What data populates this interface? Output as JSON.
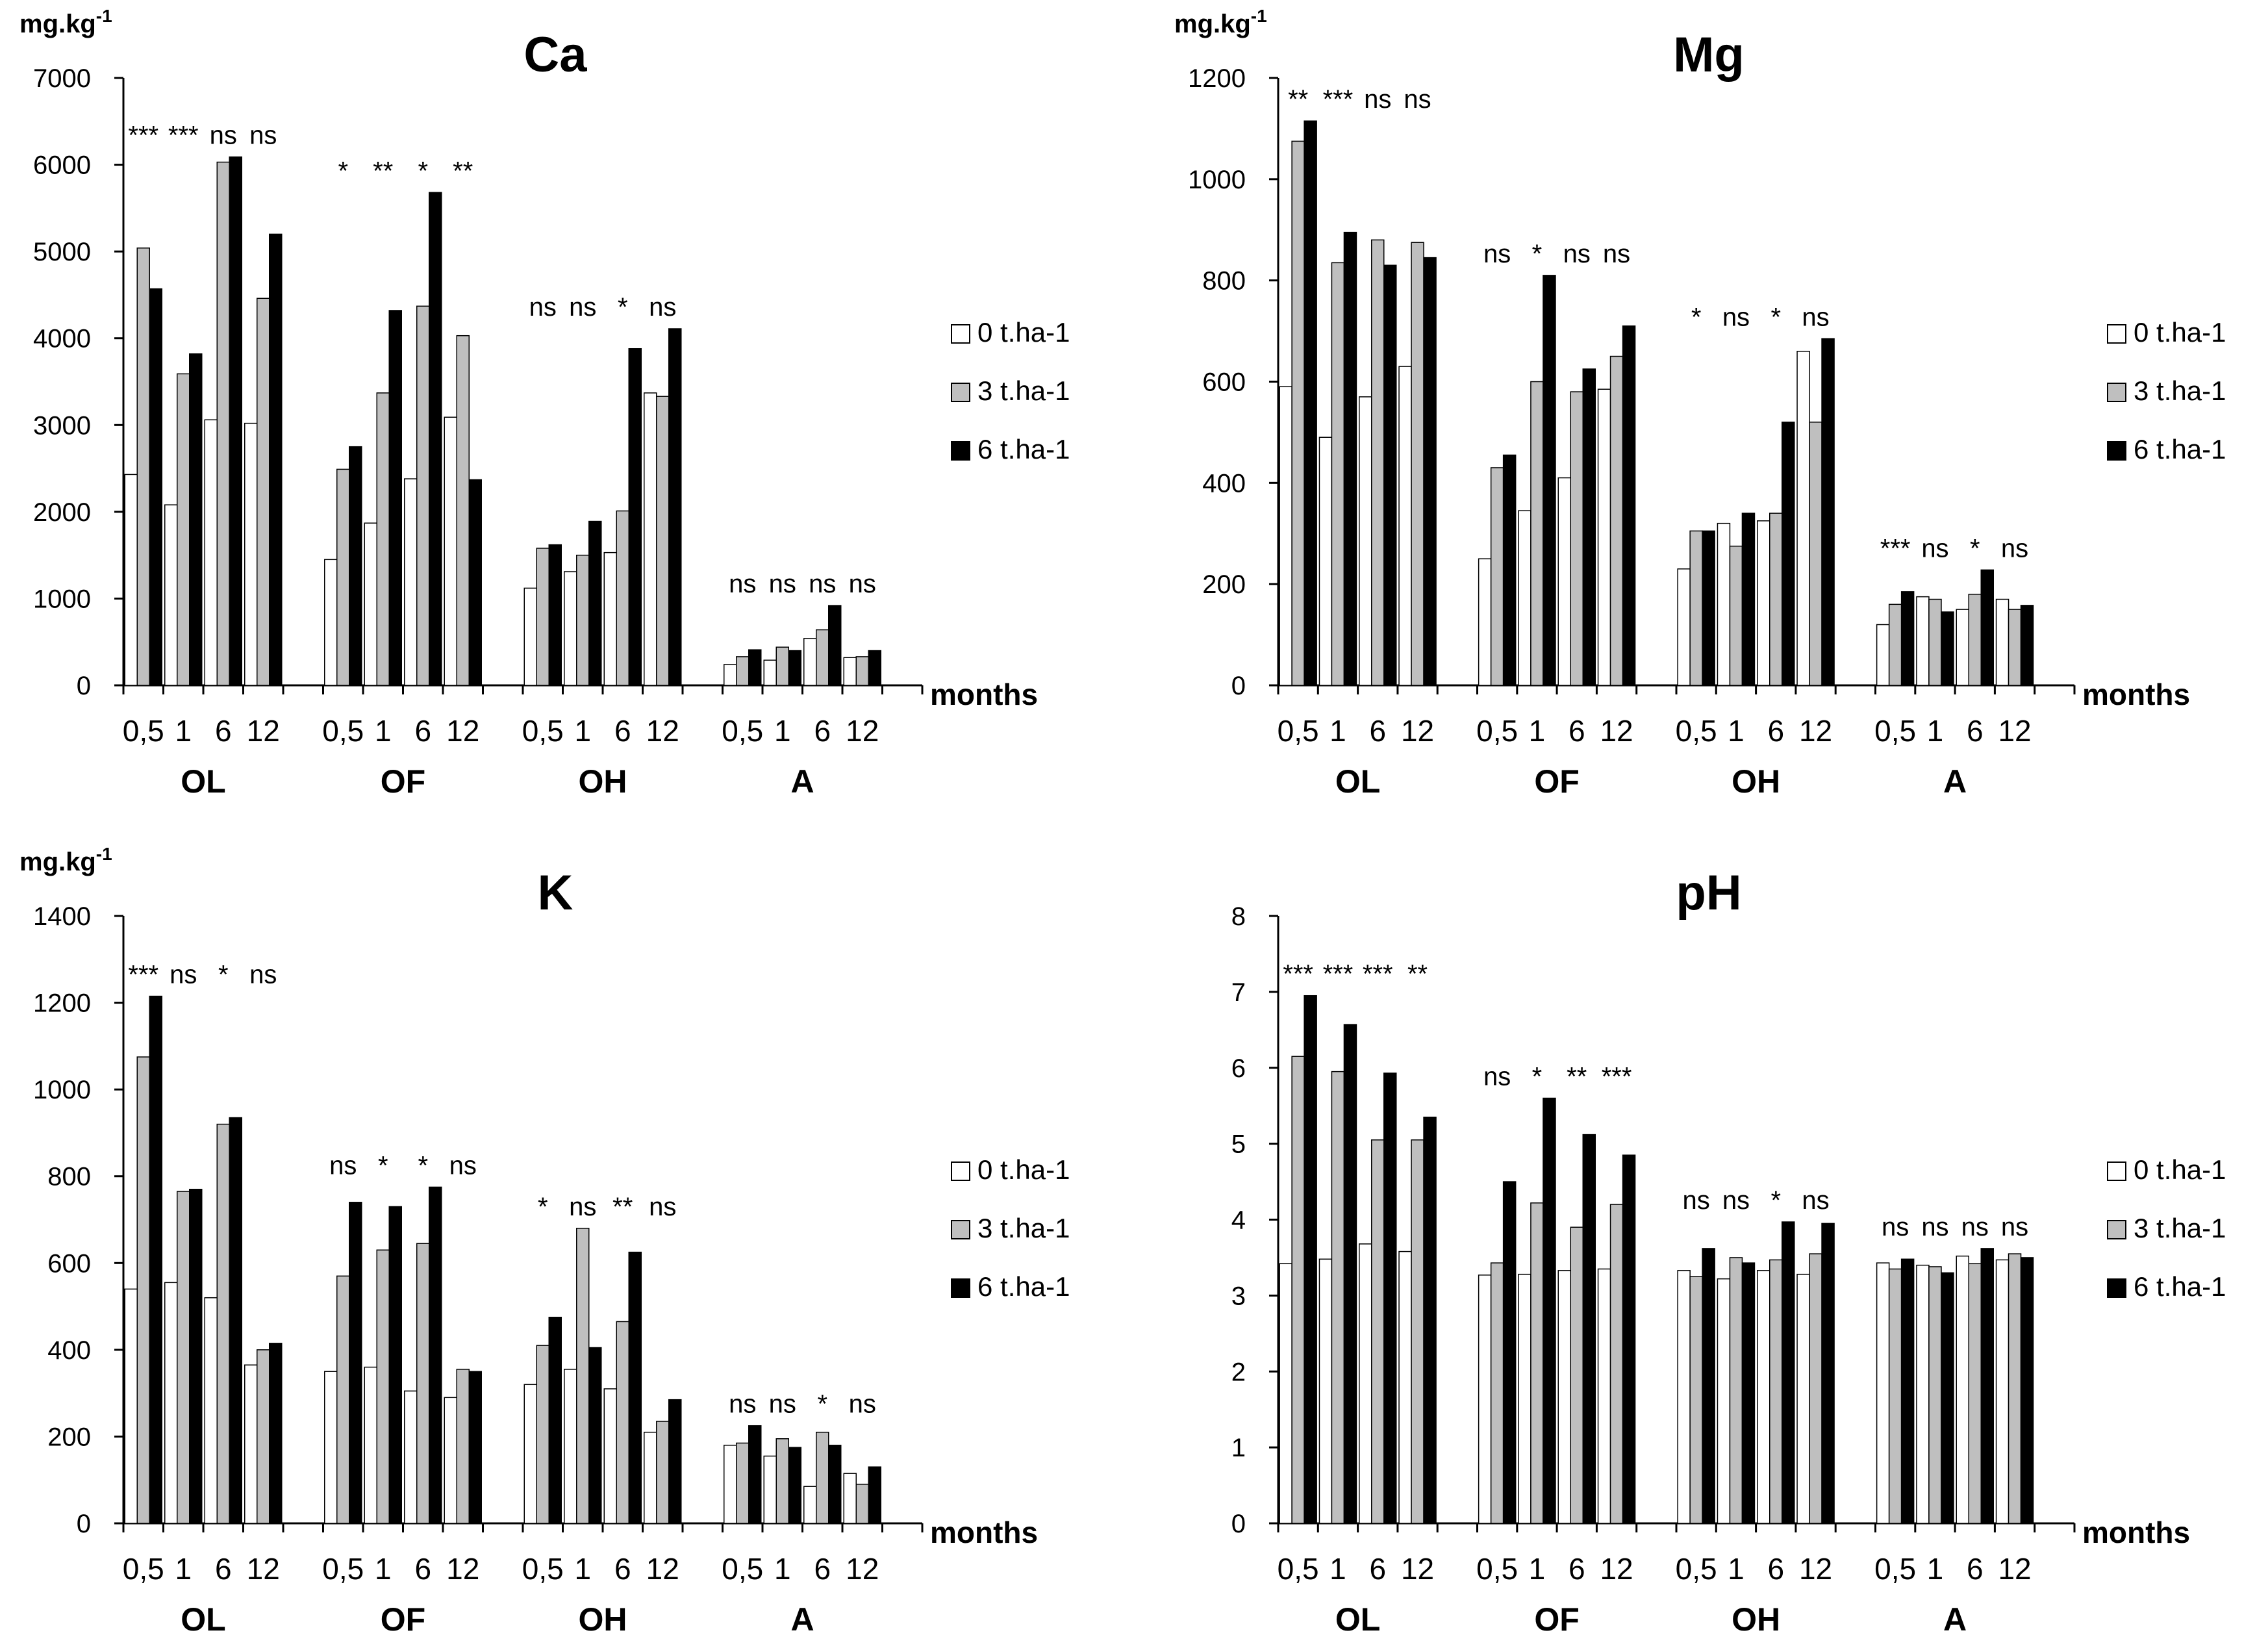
{
  "chart_data": [
    {
      "type": "bar",
      "title": "Ca",
      "ylabel": "mg.kg-1",
      "ylabel_main": "mg.kg",
      "ylabel_sup": "-1",
      "xlabel": "months",
      "ylim": [
        0,
        7000
      ],
      "yticks": [
        "0",
        "1000",
        "2000",
        "3000",
        "4000",
        "5000",
        "6000",
        "7000"
      ],
      "groups": [
        "OL",
        "OF",
        "OH",
        "A"
      ],
      "months": [
        "0,5",
        "1",
        "6",
        "12"
      ],
      "legend": [
        "0 t.ha-1",
        "3 t.ha-1",
        "6 t.ha-1"
      ],
      "legend_position": "right",
      "series": [
        {
          "name": "0 t.ha-1",
          "color": "#ffffff",
          "values": [
            [
              2430,
              2080,
              3060,
              3020
            ],
            [
              1450,
              1870,
              2380,
              3090
            ],
            [
              1120,
              1310,
              1530,
              3370
            ],
            [
              240,
              290,
              540,
              320
            ]
          ]
        },
        {
          "name": "3 t.ha-1",
          "color": "#bfbfbf",
          "values": [
            [
              5040,
              3590,
              6030,
              4460
            ],
            [
              2490,
              3370,
              4370,
              4030
            ],
            [
              1580,
              1500,
              2010,
              3330
            ],
            [
              330,
              440,
              640,
              330
            ]
          ]
        },
        {
          "name": "6 t.ha-1",
          "color": "#000000",
          "values": [
            [
              4570,
              3820,
              6090,
              5200
            ],
            [
              2750,
              4320,
              5680,
              2370
            ],
            [
              1620,
              1890,
              3880,
              4110
            ],
            [
              410,
              400,
              920,
              400
            ]
          ]
        }
      ],
      "significance": [
        [
          "***",
          "***",
          "ns",
          "ns"
        ],
        [
          "*",
          "**",
          "*",
          "**"
        ],
        [
          "ns",
          "ns",
          "*",
          "ns"
        ],
        [
          "ns",
          "ns",
          "ns",
          "ns"
        ]
      ]
    },
    {
      "type": "bar",
      "title": "Mg",
      "ylabel": "mg.kg-1",
      "ylabel_main": "mg.kg",
      "ylabel_sup": "-1",
      "xlabel": "months",
      "ylim": [
        0,
        1200
      ],
      "yticks": [
        "0",
        "200",
        "400",
        "600",
        "800",
        "1000",
        "1200"
      ],
      "groups": [
        "OL",
        "OF",
        "OH",
        "A"
      ],
      "months": [
        "0,5",
        "1",
        "6",
        "12"
      ],
      "legend": [
        "0 t.ha-1",
        "3 t.ha-1",
        "6 t.ha-1"
      ],
      "legend_position": "right",
      "series": [
        {
          "name": "0 t.ha-1",
          "color": "#ffffff",
          "values": [
            [
              590,
              490,
              570,
              630
            ],
            [
              250,
              345,
              410,
              585
            ],
            [
              230,
              320,
              325,
              660
            ],
            [
              120,
              175,
              150,
              170
            ]
          ]
        },
        {
          "name": "3 t.ha-1",
          "color": "#bfbfbf",
          "values": [
            [
              1075,
              835,
              880,
              875
            ],
            [
              430,
              600,
              580,
              650
            ],
            [
              305,
              275,
              340,
              520
            ],
            [
              160,
              170,
              180,
              150
            ]
          ]
        },
        {
          "name": "6 t.ha-1",
          "color": "#000000",
          "values": [
            [
              1115,
              895,
              830,
              845
            ],
            [
              455,
              810,
              625,
              710
            ],
            [
              305,
              340,
              520,
              685
            ],
            [
              185,
              145,
              228,
              158
            ]
          ]
        }
      ],
      "significance": [
        [
          "**",
          "***",
          "ns",
          "ns"
        ],
        [
          "ns",
          "*",
          "ns",
          "ns"
        ],
        [
          "*",
          "ns",
          "*",
          "ns"
        ],
        [
          "***",
          "ns",
          "*",
          "ns"
        ]
      ]
    },
    {
      "type": "bar",
      "title": "K",
      "ylabel": "mg.kg-1",
      "ylabel_main": "mg.kg",
      "ylabel_sup": "-1",
      "xlabel": "months",
      "ylim": [
        0,
        1400
      ],
      "yticks": [
        "0",
        "200",
        "400",
        "600",
        "800",
        "1000",
        "1200",
        "1400"
      ],
      "groups": [
        "OL",
        "OF",
        "OH",
        "A"
      ],
      "months": [
        "0,5",
        "1",
        "6",
        "12"
      ],
      "legend": [
        "0 t.ha-1",
        "3 t.ha-1",
        "6 t.ha-1"
      ],
      "legend_position": "right",
      "series": [
        {
          "name": "0 t.ha-1",
          "color": "#ffffff",
          "values": [
            [
              540,
              555,
              520,
              365
            ],
            [
              350,
              360,
              305,
              290
            ],
            [
              320,
              355,
              310,
              210
            ],
            [
              180,
              155,
              85,
              115
            ]
          ]
        },
        {
          "name": "3 t.ha-1",
          "color": "#bfbfbf",
          "values": [
            [
              1075,
              765,
              920,
              400
            ],
            [
              570,
              630,
              645,
              355
            ],
            [
              410,
              680,
              465,
              235
            ],
            [
              185,
              195,
              210,
              90
            ]
          ]
        },
        {
          "name": "6 t.ha-1",
          "color": "#000000",
          "values": [
            [
              1215,
              770,
              935,
              415
            ],
            [
              740,
              730,
              775,
              350
            ],
            [
              475,
              405,
              625,
              285
            ],
            [
              225,
              175,
              180,
              130
            ]
          ]
        }
      ],
      "significance": [
        [
          "***",
          "ns",
          "*",
          "ns"
        ],
        [
          "ns",
          "*",
          "*",
          "ns"
        ],
        [
          "*",
          "ns",
          "**",
          "ns"
        ],
        [
          "ns",
          "ns",
          "*",
          "ns"
        ]
      ]
    },
    {
      "type": "bar",
      "title": "pH",
      "ylabel": "",
      "ylabel_main": "",
      "ylabel_sup": "",
      "xlabel": "months",
      "ylim": [
        0,
        8
      ],
      "yticks": [
        "0",
        "1",
        "2",
        "3",
        "4",
        "5",
        "6",
        "7",
        "8"
      ],
      "groups": [
        "OL",
        "OF",
        "OH",
        "A"
      ],
      "months": [
        "0,5",
        "1",
        "6",
        "12"
      ],
      "legend": [
        "0 t.ha-1",
        "3 t.ha-1",
        "6 t.ha-1"
      ],
      "legend_position": "right",
      "series": [
        {
          "name": "0 t.ha-1",
          "color": "#ffffff",
          "values": [
            [
              3.42,
              3.48,
              3.68,
              3.58
            ],
            [
              3.27,
              3.28,
              3.33,
              3.35
            ],
            [
              3.33,
              3.22,
              3.33,
              3.28
            ],
            [
              3.43,
              3.4,
              3.52,
              3.47
            ]
          ]
        },
        {
          "name": "3 t.ha-1",
          "color": "#bfbfbf",
          "values": [
            [
              6.15,
              5.95,
              5.05,
              5.05
            ],
            [
              3.43,
              4.22,
              3.9,
              4.2
            ],
            [
              3.25,
              3.5,
              3.47,
              3.55
            ],
            [
              3.35,
              3.38,
              3.42,
              3.55
            ]
          ]
        },
        {
          "name": "6 t.ha-1",
          "color": "#000000",
          "values": [
            [
              6.95,
              6.57,
              5.93,
              5.35
            ],
            [
              4.5,
              5.6,
              5.12,
              4.85
            ],
            [
              3.62,
              3.43,
              3.97,
              3.95
            ],
            [
              3.48,
              3.3,
              3.62,
              3.5
            ]
          ]
        }
      ],
      "significance": [
        [
          "***",
          "***",
          "***",
          "**"
        ],
        [
          "ns",
          "*",
          "**",
          "***"
        ],
        [
          "ns",
          "ns",
          "*",
          "ns"
        ],
        [
          "ns",
          "ns",
          "ns",
          "ns"
        ]
      ]
    }
  ]
}
